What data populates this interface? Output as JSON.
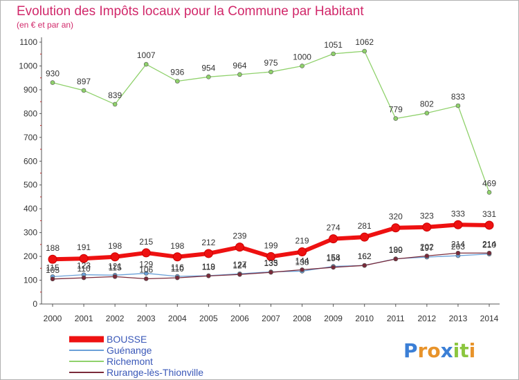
{
  "chart_data": {
    "type": "line",
    "title": "Evolution des Impôts locaux pour la Commune par Habitant",
    "subtitle": "(en € et par an)",
    "x": [
      "2000",
      "2001",
      "2002",
      "2003",
      "2004",
      "2005",
      "2006",
      "2007",
      "2008",
      "2009",
      "2010",
      "2011",
      "2012",
      "2013",
      "2014"
    ],
    "ylim": [
      0,
      1100
    ],
    "yticks": [
      "0",
      "100",
      "200",
      "300",
      "400",
      "500",
      "600",
      "700",
      "800",
      "900",
      "1000",
      "1100"
    ],
    "grid": false,
    "legend_position": "bottom-left",
    "series": [
      {
        "name": "Richemont",
        "color": "#8fd16b",
        "values": [
          930,
          897,
          839,
          1007,
          936,
          954,
          964,
          975,
          1000,
          1051,
          1062,
          779,
          802,
          833,
          469
        ],
        "labels": [
          "930",
          "897",
          "839",
          "1007",
          "936",
          "954",
          "964",
          "975",
          "1000",
          "1051",
          "1062",
          "779",
          "802",
          "833",
          "469"
        ]
      },
      {
        "name": "Guénange",
        "color": "#6aa0d8",
        "values": [
          115,
          123,
          121,
          129,
          116,
          119,
          127,
          135,
          138,
          158,
          162,
          190,
          197,
          203,
          210
        ],
        "labels": [
          "115",
          "123",
          "121",
          "129",
          "116",
          "119",
          "127",
          "135",
          "138",
          "158",
          "162",
          "190",
          "197",
          "203",
          "210"
        ]
      },
      {
        "name": "Rurange-lès-Thionville",
        "color": "#7a2a3a",
        "values": [
          105,
          110,
          115,
          106,
          110,
          118,
          124,
          133,
          144,
          154,
          162,
          189,
          202,
          214,
          214
        ],
        "labels": [
          "105",
          "110",
          "115",
          "106",
          "110",
          "118",
          "124",
          "133",
          "144",
          "154",
          "162",
          "189",
          "202",
          "214",
          "214"
        ]
      },
      {
        "name": "BOUSSE",
        "color": "#ee1111",
        "values": [
          188,
          191,
          198,
          215,
          198,
          212,
          239,
          199,
          219,
          274,
          281,
          320,
          323,
          333,
          331
        ],
        "labels": [
          "188",
          "191",
          "198",
          "215",
          "198",
          "212",
          "239",
          "199",
          "219",
          "274",
          "281",
          "320",
          "323",
          "333",
          "331"
        ]
      }
    ],
    "legend": [
      "BOUSSE",
      "Guénange",
      "Richemont",
      "Rurange-lès-Thionville"
    ]
  },
  "brand": {
    "name": "Proxiti",
    "letters": [
      "P",
      "r",
      "o",
      "x",
      "i",
      "t",
      "i"
    ],
    "colors": [
      "#3b7fd6",
      "#e8932a",
      "#e8932a",
      "#3b7fd6",
      "#8cc63f",
      "#8cc63f",
      "#e8932a"
    ]
  }
}
